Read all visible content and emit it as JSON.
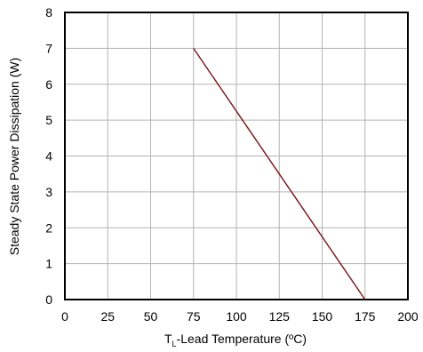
{
  "chart_data": {
    "type": "line",
    "title": "",
    "xlabel_main": "T",
    "xlabel_sub": "L",
    "xlabel_rest": "-Lead Temperature (ºC)",
    "ylabel": "Steady State Power Dissipation (W)",
    "xlim": [
      0,
      200
    ],
    "ylim": [
      0,
      8
    ],
    "xticks": [
      0,
      25,
      50,
      75,
      100,
      125,
      150,
      175,
      200
    ],
    "yticks": [
      0,
      1,
      2,
      3,
      4,
      5,
      6,
      7,
      8
    ],
    "grid": true,
    "series": [
      {
        "color": "#7b1e1e",
        "x": [
          75,
          175
        ],
        "y": [
          7,
          0
        ]
      }
    ]
  },
  "colors": {
    "grid": "#b3b3b3",
    "frame": "#000000",
    "line": "#7b1e1e"
  }
}
